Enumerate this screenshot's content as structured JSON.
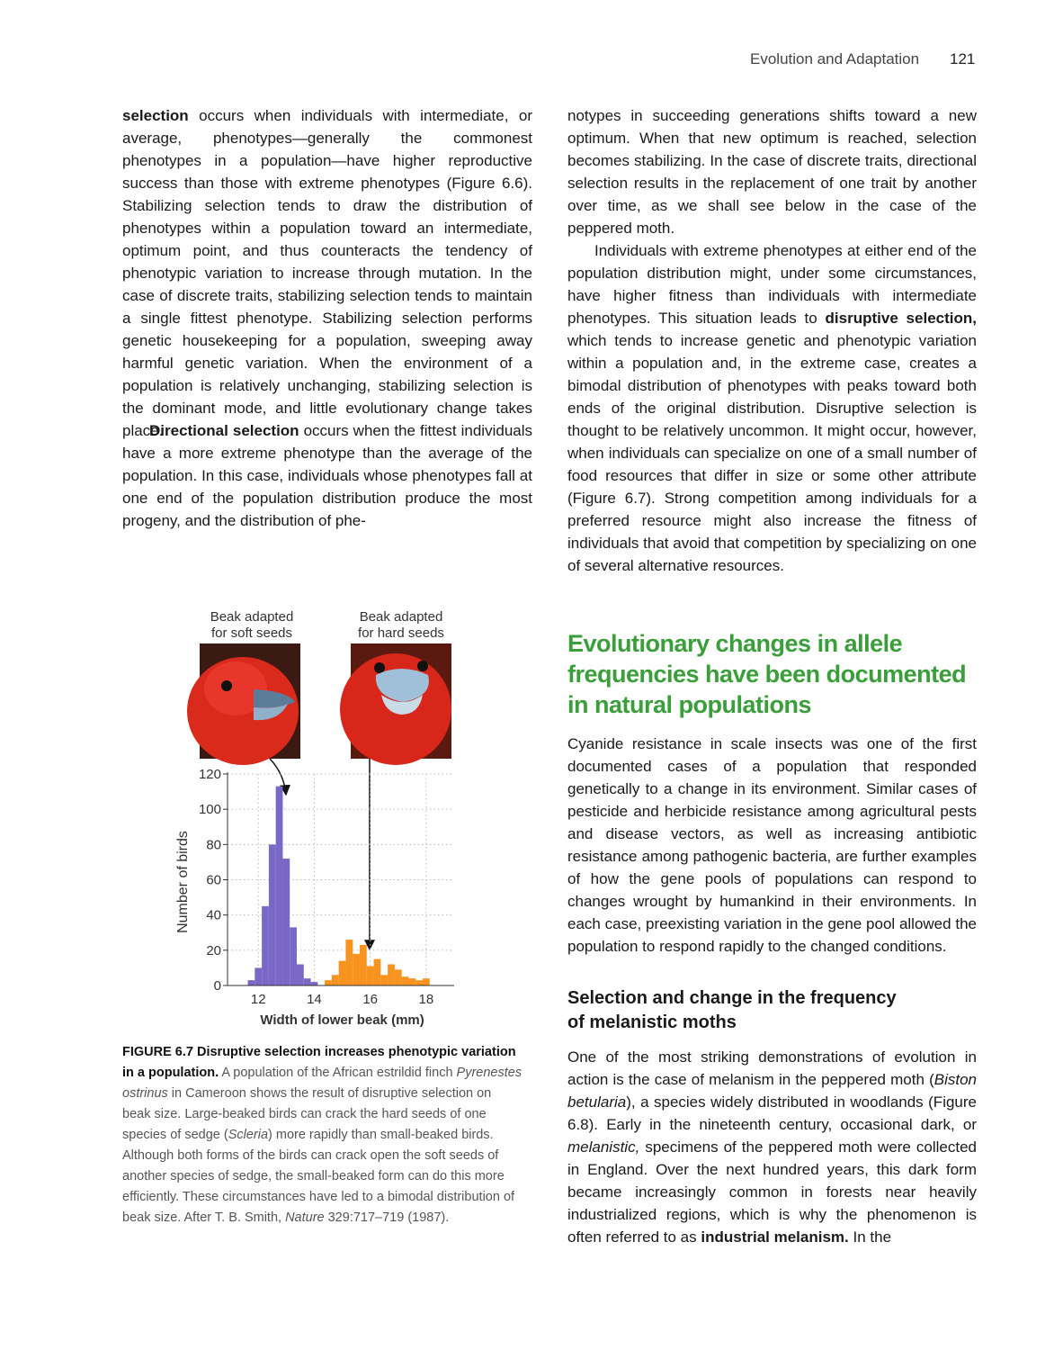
{
  "header": {
    "section": "Evolution and Adaptation",
    "page": "121"
  },
  "left": {
    "paragraphs": [
      [
        {
          "text": "selection",
          "bold": true
        },
        {
          "text": " occurs when individuals with intermediate, or average, phenotypes—generally the commonest phenotypes in a population—have higher reproductive success than those with extreme phenotypes (Figure 6.6). Stabilizing selection tends to draw the distribution of phenotypes within a population toward an intermediate, optimum point, and thus counteracts the tendency of phenotypic variation to increase through mutation. In the case of discrete traits, stabilizing selection tends to maintain a single fittest phenotype. Stabilizing selection performs genetic housekeeping for a population, sweeping away harmful genetic variation. When the environment of a population is relatively unchanging, stabilizing selection is the dominant mode, and little evolutionary change takes place."
        }
      ],
      [
        {
          "text": "Directional selection",
          "bold": true
        },
        {
          "text": " occurs when the fittest individuals have a more extreme phenotype than the average of the population. In this case, individuals whose phenotypes fall at one end of the population distribution produce the most progeny, and the distribution of phe-"
        }
      ]
    ]
  },
  "right": {
    "paragraphs": [
      [
        {
          "text": "notypes in succeeding generations shifts toward a new optimum. When that new optimum is reached, selection becomes stabilizing. In the case of discrete traits, directional selection results in the replacement of one trait by another over time, as we shall see below in the case of the peppered moth."
        }
      ],
      [
        {
          "text": "Individuals with extreme phenotypes at either end of the population distribution might, under some circumstances, have higher fitness than individuals with intermediate phenotypes. This situation leads to "
        },
        {
          "text": "disruptive selection,",
          "bold": true
        },
        {
          "text": " which tends to increase genetic and phenotypic variation within a population and, in the extreme case, creates a bimodal distribution of phenotypes with peaks toward both ends of the original distribution. Disruptive selection is thought to be relatively uncommon. It might occur, however, when individuals can specialize on one of a small number of food resources that differ in size or some other attribute (Figure 6.7). Strong competition among individuals for a preferred resource might also increase the fitness of individuals that avoid that competition by specializing on one of several alternative resources."
        }
      ]
    ],
    "heading": [
      "Evolutionary changes in allele",
      "frequencies have been documented",
      "in natural populations"
    ],
    "paragraph3": [
      {
        "text": "Cyanide resistance in scale insects was one of the first documented cases of a population that responded genetically to a change in its environment. Similar cases of pesticide and herbicide resistance among agricultural pests and disease vectors, as well as increasing antibiotic resistance among pathogenic bacteria, are further examples of how the gene pools of populations can respond to changes wrought by humankind in their environments. In each case, preexisting variation in the gene pool allowed the population to respond rapidly to the changed conditions."
      }
    ],
    "subheading": [
      "Selection and change in the frequency",
      "of melanistic moths"
    ],
    "paragraph4": [
      {
        "text": "One of the most striking demonstrations of evolution in action is the case of melanism in the peppered moth ("
      },
      {
        "text": "Biston betularia",
        "italic": true
      },
      {
        "text": "), a species widely distributed in woodlands (Figure 6.8). Early in the nineteenth century, occasional dark, or "
      },
      {
        "text": "melanistic,",
        "italic": true
      },
      {
        "text": " specimens of the peppered moth were collected in England. Over the next hundred years, this dark form became increasingly common in forests near heavily industrialized regions, which is why the phenomenon is often referred to as "
      },
      {
        "text": "industrial melanism.",
        "bold": true
      },
      {
        "text": " In the"
      }
    ]
  },
  "caption": [
    {
      "text": "FIGURE 6.7",
      "bold": true
    },
    {
      "text": " Disruptive selection increases phenotypic variation in a population.",
      "bold": true
    },
    {
      "text": " A population of the African estrildid finch "
    },
    {
      "text": "Pyrenestes ostrinus",
      "italic": true
    },
    {
      "text": " in Cameroon shows the result of disruptive selection on beak size. Large-beaked birds can crack the hard seeds of one species of sedge ("
    },
    {
      "text": "Scleria",
      "italic": true
    },
    {
      "text": ") more rapidly than small-beaked birds. Although both forms of the birds can crack open the soft seeds of another species of sedge, the small-beaked form can do this more efficiently. These circumstances have led to a bimodal distribution of beak size. After T. B. Smith, "
    },
    {
      "text": "Nature",
      "italic": true
    },
    {
      "text": " 329:717–719 (1987)."
    }
  ],
  "chart_data": {
    "type": "histogram",
    "annotations": [
      [
        "Beak adapted",
        "for soft seeds"
      ],
      [
        "Beak adapted",
        "for hard seeds"
      ]
    ],
    "x_label": "Width of lower beak (mm)",
    "y_label": "Number of birds",
    "series": [
      {
        "color": "#7a68c6",
        "bins": [
          11.625,
          11.875,
          12.125,
          12.375,
          12.625,
          12.875,
          13.125,
          13.375,
          13.625,
          13.875,
          14.125
        ],
        "values": [
          3,
          10,
          45,
          80,
          113,
          72,
          33,
          12,
          4,
          2
        ]
      },
      {
        "color": "#f7931e",
        "bins": [
          14.375,
          14.625,
          14.875,
          15.125,
          15.375,
          15.625,
          15.875,
          16.125,
          16.375,
          16.625,
          16.875,
          17.125,
          17.375,
          17.625,
          17.875,
          18.125
        ],
        "values": [
          3,
          6,
          14,
          26,
          18,
          23,
          11,
          15,
          6,
          12,
          9,
          5,
          4,
          3,
          4
        ]
      }
    ],
    "xlim": [
      10.9,
      19
    ],
    "ylim": [
      0,
      120
    ],
    "xticks": [
      12,
      14,
      16,
      18
    ],
    "yticks": [
      0,
      20,
      40,
      60,
      80,
      100,
      120
    ],
    "grid": true
  }
}
